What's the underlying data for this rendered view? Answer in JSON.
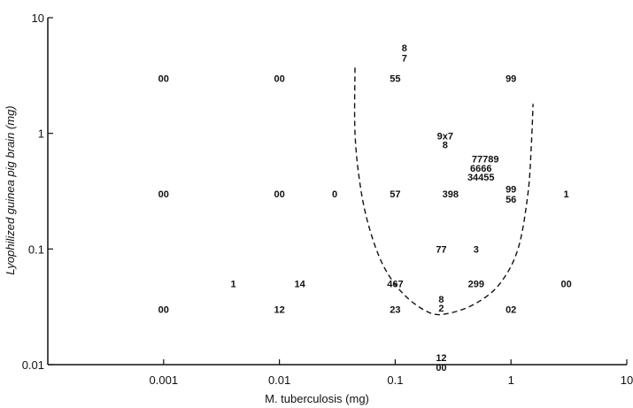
{
  "chart_data": {
    "type": "scatter",
    "title": "",
    "xlabel": "M. tuberculosis (mg)",
    "ylabel": "Lyophilized guinea pig brain (mg)",
    "xscale": "log",
    "yscale": "log",
    "xlim": [
      0.0001,
      10
    ],
    "ylim": [
      0.01,
      10
    ],
    "x_ticks": [
      {
        "value": 0.001,
        "label": "0.001"
      },
      {
        "value": 0.01,
        "label": "0.01"
      },
      {
        "value": 0.1,
        "label": "0.1"
      },
      {
        "value": 1,
        "label": "1"
      },
      {
        "value": 10,
        "label": "10"
      }
    ],
    "y_ticks": [
      {
        "value": 0.01,
        "label": "0.01"
      },
      {
        "value": 0.1,
        "label": "0.1"
      },
      {
        "value": 1,
        "label": "1"
      },
      {
        "value": 10,
        "label": "10"
      }
    ],
    "grid": false,
    "legend": "none",
    "points": [
      {
        "x": 0.001,
        "y": 3,
        "label": "00"
      },
      {
        "x": 0.01,
        "y": 3,
        "label": "00"
      },
      {
        "x": 0.1,
        "y": 3,
        "label": "55"
      },
      {
        "x": 1,
        "y": 3,
        "label": "99"
      },
      {
        "x": 0.12,
        "y": 5.5,
        "label": "8"
      },
      {
        "x": 0.12,
        "y": 4.5,
        "label": "7"
      },
      {
        "x": 0.27,
        "y": 0.95,
        "label": "9x7"
      },
      {
        "x": 0.27,
        "y": 0.8,
        "label": "8"
      },
      {
        "x": 0.6,
        "y": 0.6,
        "label": "77789"
      },
      {
        "x": 0.55,
        "y": 0.5,
        "label": "6666"
      },
      {
        "x": 0.55,
        "y": 0.42,
        "label": "34455"
      },
      {
        "x": 0.001,
        "y": 0.3,
        "label": "00"
      },
      {
        "x": 0.01,
        "y": 0.3,
        "label": "00"
      },
      {
        "x": 0.03,
        "y": 0.3,
        "label": "0"
      },
      {
        "x": 0.1,
        "y": 0.3,
        "label": "57"
      },
      {
        "x": 0.3,
        "y": 0.3,
        "label": "398"
      },
      {
        "x": 1,
        "y": 0.33,
        "label": "99"
      },
      {
        "x": 1,
        "y": 0.27,
        "label": "56"
      },
      {
        "x": 3,
        "y": 0.3,
        "label": "1"
      },
      {
        "x": 0.25,
        "y": 0.1,
        "label": "77"
      },
      {
        "x": 0.5,
        "y": 0.1,
        "label": "3"
      },
      {
        "x": 0.004,
        "y": 0.05,
        "label": "1"
      },
      {
        "x": 0.015,
        "y": 0.05,
        "label": "14"
      },
      {
        "x": 0.1,
        "y": 0.05,
        "label": "467"
      },
      {
        "x": 0.5,
        "y": 0.05,
        "label": "299"
      },
      {
        "x": 3,
        "y": 0.05,
        "label": "00"
      },
      {
        "x": 0.25,
        "y": 0.037,
        "label": "8"
      },
      {
        "x": 0.25,
        "y": 0.031,
        "label": "2"
      },
      {
        "x": 0.001,
        "y": 0.03,
        "label": "00"
      },
      {
        "x": 0.01,
        "y": 0.03,
        "label": "12"
      },
      {
        "x": 0.1,
        "y": 0.03,
        "label": "23"
      },
      {
        "x": 1,
        "y": 0.03,
        "label": "02"
      },
      {
        "x": 0.25,
        "y": 0.0115,
        "label": "12"
      },
      {
        "x": 0.25,
        "y": 0.0095,
        "label": "00"
      }
    ],
    "boundary_curve": {
      "style": "dashed",
      "points": [
        [
          0.045,
          3.7
        ],
        [
          0.045,
          1.0
        ],
        [
          0.05,
          0.35
        ],
        [
          0.06,
          0.15
        ],
        [
          0.08,
          0.07
        ],
        [
          0.12,
          0.04
        ],
        [
          0.2,
          0.028
        ],
        [
          0.3,
          0.028
        ],
        [
          0.5,
          0.034
        ],
        [
          0.8,
          0.05
        ],
        [
          1.15,
          0.1
        ],
        [
          1.4,
          0.3
        ],
        [
          1.5,
          0.8
        ],
        [
          1.55,
          1.8
        ]
      ]
    }
  }
}
